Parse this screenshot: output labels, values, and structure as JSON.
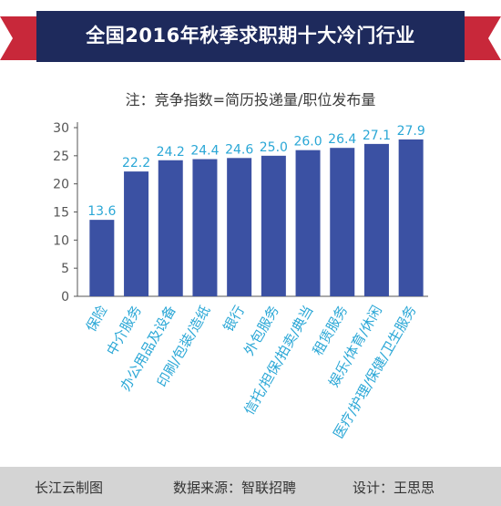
{
  "title": "全国2016年秋季求职期十大冷门行业",
  "note": "注：竞争指数=简历投递量/职位发布量",
  "colors": {
    "banner": "#1e2a5c",
    "ribbon": "#c8283a",
    "bar": "#3b51a3",
    "label": "#2aa7d6",
    "axis": "#555555",
    "grid": "#bbbbbb"
  },
  "chart_data": {
    "type": "bar",
    "categories": [
      "保险",
      "中介服务",
      "办公用品及设备",
      "印刷/包装/造纸",
      "银行",
      "外包服务",
      "信托/担保/拍卖/典当",
      "租赁服务",
      "娱乐/体育/休闲",
      "医疗/护理/保健/卫生服务"
    ],
    "values": [
      13.6,
      22.2,
      24.2,
      24.4,
      24.6,
      25.0,
      26.0,
      26.4,
      27.1,
      27.9
    ],
    "data_labels": [
      "13.6",
      "22.2",
      "24.2",
      "24.4",
      "24.6",
      "25.0",
      "26.0",
      "26.4",
      "27.1",
      "27.9"
    ],
    "yticks": [
      "0",
      "5",
      "10",
      "15",
      "20",
      "25",
      "30"
    ],
    "ylim": [
      0,
      30
    ],
    "grid": false,
    "title": "全国2016年秋季求职期十大冷门行业",
    "xlabel": "",
    "ylabel": ""
  },
  "footer": {
    "left": "长江云制图",
    "middle": "数据来源：智联招聘",
    "right": "设计：王思思"
  }
}
